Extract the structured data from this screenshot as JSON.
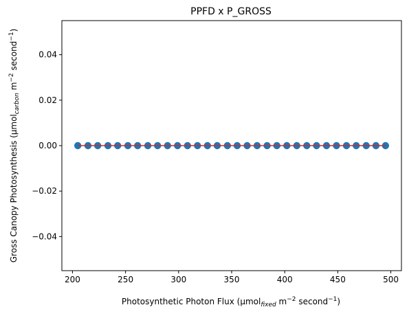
{
  "chart_data": {
    "type": "scatter",
    "title": "PPFD x P_GROSS",
    "xlabel": {
      "main": "Photosynthetic Photon Flux (μmol",
      "sub": "fixed",
      "mid": " m",
      "sup1": "−2",
      "mid2": " second",
      "sup2": "−1",
      "end": ")"
    },
    "ylabel": {
      "main": "Gross Canopy Photosynthesis (μmol",
      "sub": "carbon",
      "mid": " m",
      "sup1": "−2",
      "mid2": " second",
      "sup2": "−1",
      "end": ")"
    },
    "xlim": [
      190,
      510
    ],
    "ylim": [
      -0.055,
      0.055
    ],
    "x_ticks": [
      200,
      250,
      300,
      350,
      400,
      450,
      500
    ],
    "x_tick_labels": [
      "200",
      "250",
      "300",
      "350",
      "400",
      "450",
      "500"
    ],
    "y_ticks": [
      0.04,
      0.02,
      0.0,
      -0.02,
      -0.04
    ],
    "y_tick_labels": [
      "0.04",
      "0.02",
      "0.00",
      "−0.02",
      "−0.04"
    ],
    "grid": false,
    "series": [
      {
        "kind": "points",
        "color": "#1f77b4",
        "x": [
          205,
          214.6,
          223.8,
          233.4,
          242.6,
          252.2,
          261.4,
          271,
          280.2,
          289.6,
          299,
          308.4,
          317.8,
          327.2,
          336.4,
          346,
          355.2,
          364.6,
          374,
          383.4,
          392.6,
          402,
          411.4,
          420.8,
          430,
          439.4,
          448.8,
          458.2,
          467.4,
          476.8,
          486,
          495
        ],
        "y": [
          0,
          0,
          0,
          0,
          0,
          0,
          0,
          0,
          0,
          0,
          0,
          0,
          0,
          0,
          0,
          0,
          0,
          0,
          0,
          0,
          0,
          0,
          0,
          0,
          0,
          0,
          0,
          0,
          0,
          0,
          0,
          0
        ]
      },
      {
        "kind": "line",
        "color": "#d62728",
        "x": [
          205,
          495
        ],
        "y": [
          0,
          0
        ]
      }
    ]
  }
}
